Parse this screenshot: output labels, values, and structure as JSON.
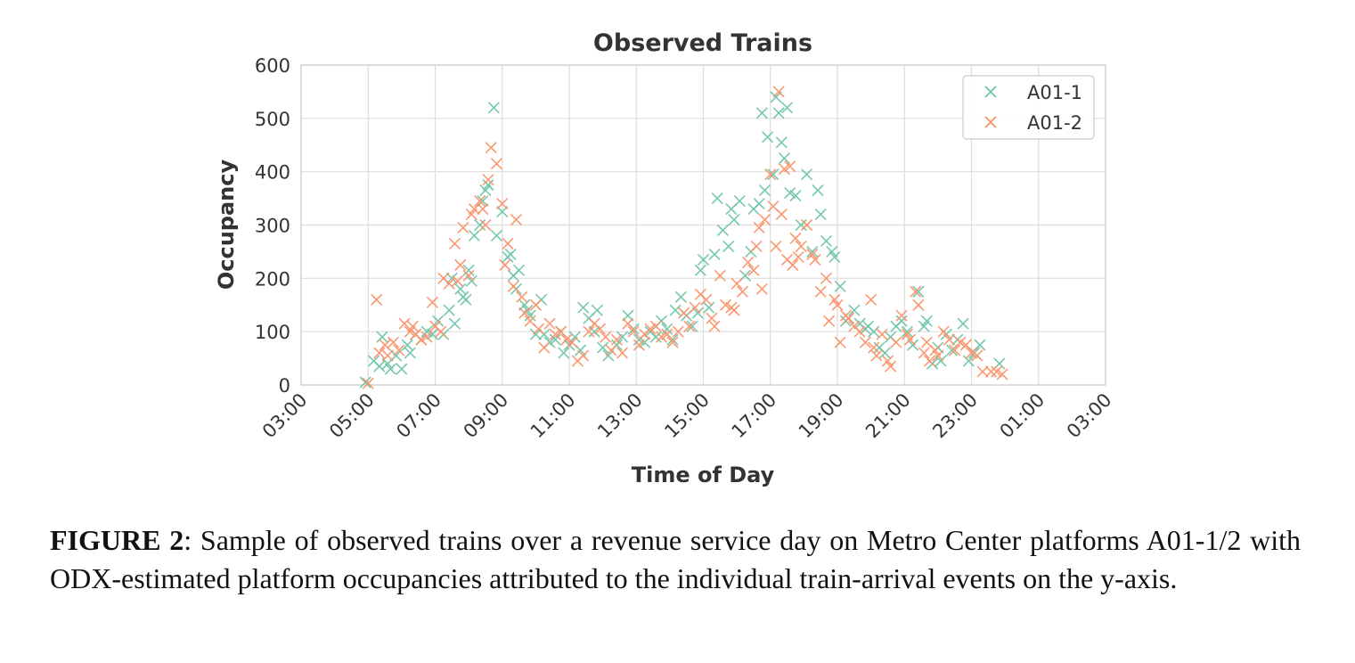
{
  "figure": {
    "label": "FIGURE 2",
    "text": ":  Sample of observed trains over a revenue service day on Metro Center platforms A01-1/2 with ODX-estimated platform occupancies attributed to the individual train-arrival events on the y-axis."
  },
  "chart_data": {
    "type": "scatter",
    "title": "Observed Trains",
    "xlabel": "Time of Day",
    "ylabel": "Occupancy",
    "xlim": [
      "03:00",
      "03:00 (next day)"
    ],
    "ylim": [
      0,
      600
    ],
    "x_ticks": [
      "03:00",
      "05:00",
      "07:00",
      "09:00",
      "11:00",
      "13:00",
      "15:00",
      "17:00",
      "19:00",
      "21:00",
      "23:00",
      "01:00",
      "03:00"
    ],
    "y_ticks": [
      "0",
      "100",
      "200",
      "300",
      "400",
      "500",
      "600"
    ],
    "grid": true,
    "legend_position": "top-right",
    "marker": "x",
    "series": [
      {
        "name": "A01-1",
        "color": "#66c2a5",
        "points": [
          [
            "04:55",
            5
          ],
          [
            "05:10",
            45
          ],
          [
            "05:20",
            35
          ],
          [
            "05:25",
            90
          ],
          [
            "05:35",
            40
          ],
          [
            "05:40",
            30
          ],
          [
            "05:50",
            55
          ],
          [
            "06:00",
            30
          ],
          [
            "06:10",
            75
          ],
          [
            "06:15",
            60
          ],
          [
            "06:25",
            95
          ],
          [
            "06:35",
            85
          ],
          [
            "06:45",
            100
          ],
          [
            "06:55",
            95
          ],
          [
            "07:05",
            120
          ],
          [
            "07:15",
            95
          ],
          [
            "07:25",
            140
          ],
          [
            "07:30",
            200
          ],
          [
            "07:35",
            115
          ],
          [
            "07:45",
            180
          ],
          [
            "07:50",
            165
          ],
          [
            "07:55",
            160
          ],
          [
            "08:00",
            215
          ],
          [
            "08:05",
            195
          ],
          [
            "08:10",
            280
          ],
          [
            "08:20",
            300
          ],
          [
            "08:25",
            345
          ],
          [
            "08:30",
            365
          ],
          [
            "08:35",
            375
          ],
          [
            "08:45",
            520
          ],
          [
            "08:50",
            280
          ],
          [
            "09:00",
            325
          ],
          [
            "09:10",
            240
          ],
          [
            "09:15",
            245
          ],
          [
            "09:20",
            205
          ],
          [
            "09:25",
            180
          ],
          [
            "09:30",
            215
          ],
          [
            "09:40",
            150
          ],
          [
            "09:45",
            140
          ],
          [
            "09:50",
            130
          ],
          [
            "10:00",
            95
          ],
          [
            "10:10",
            160
          ],
          [
            "10:15",
            95
          ],
          [
            "10:25",
            80
          ],
          [
            "10:35",
            85
          ],
          [
            "10:45",
            100
          ],
          [
            "10:50",
            60
          ],
          [
            "11:00",
            75
          ],
          [
            "11:10",
            90
          ],
          [
            "11:20",
            65
          ],
          [
            "11:25",
            145
          ],
          [
            "11:35",
            125
          ],
          [
            "11:45",
            100
          ],
          [
            "11:50",
            140
          ],
          [
            "12:00",
            70
          ],
          [
            "12:10",
            55
          ],
          [
            "12:25",
            75
          ],
          [
            "12:35",
            90
          ],
          [
            "12:45",
            130
          ],
          [
            "12:55",
            105
          ],
          [
            "13:05",
            85
          ],
          [
            "13:15",
            80
          ],
          [
            "13:25",
            100
          ],
          [
            "13:35",
            90
          ],
          [
            "13:45",
            120
          ],
          [
            "13:55",
            105
          ],
          [
            "14:05",
            85
          ],
          [
            "14:10",
            140
          ],
          [
            "14:20",
            165
          ],
          [
            "14:30",
            130
          ],
          [
            "14:40",
            110
          ],
          [
            "14:50",
            135
          ],
          [
            "14:55",
            215
          ],
          [
            "15:00",
            235
          ],
          [
            "15:10",
            145
          ],
          [
            "15:20",
            245
          ],
          [
            "15:25",
            350
          ],
          [
            "15:35",
            290
          ],
          [
            "15:45",
            260
          ],
          [
            "15:50",
            330
          ],
          [
            "15:55",
            310
          ],
          [
            "16:05",
            345
          ],
          [
            "16:15",
            205
          ],
          [
            "16:25",
            250
          ],
          [
            "16:30",
            330
          ],
          [
            "16:40",
            340
          ],
          [
            "16:45",
            510
          ],
          [
            "16:50",
            365
          ],
          [
            "16:55",
            465
          ],
          [
            "17:05",
            395
          ],
          [
            "17:10",
            540
          ],
          [
            "17:15",
            510
          ],
          [
            "17:20",
            455
          ],
          [
            "17:25",
            425
          ],
          [
            "17:30",
            520
          ],
          [
            "17:35",
            360
          ],
          [
            "17:45",
            355
          ],
          [
            "17:55",
            300
          ],
          [
            "18:05",
            395
          ],
          [
            "18:15",
            250
          ],
          [
            "18:25",
            365
          ],
          [
            "18:30",
            320
          ],
          [
            "18:40",
            270
          ],
          [
            "18:50",
            250
          ],
          [
            "18:55",
            240
          ],
          [
            "19:05",
            185
          ],
          [
            "19:15",
            120
          ],
          [
            "19:20",
            125
          ],
          [
            "19:30",
            140
          ],
          [
            "19:40",
            115
          ],
          [
            "19:50",
            105
          ],
          [
            "19:55",
            110
          ],
          [
            "20:05",
            100
          ],
          [
            "20:15",
            70
          ],
          [
            "20:25",
            60
          ],
          [
            "20:35",
            90
          ],
          [
            "20:45",
            110
          ],
          [
            "20:55",
            120
          ],
          [
            "21:05",
            100
          ],
          [
            "21:15",
            75
          ],
          [
            "21:25",
            175
          ],
          [
            "21:35",
            110
          ],
          [
            "21:40",
            120
          ],
          [
            "21:50",
            40
          ],
          [
            "22:00",
            70
          ],
          [
            "22:05",
            45
          ],
          [
            "22:15",
            95
          ],
          [
            "22:25",
            65
          ],
          [
            "22:35",
            85
          ],
          [
            "22:45",
            115
          ],
          [
            "22:55",
            45
          ],
          [
            "23:05",
            60
          ],
          [
            "23:15",
            75
          ],
          [
            "23:50",
            40
          ]
        ]
      },
      {
        "name": "A01-2",
        "color": "#fc8d62",
        "points": [
          [
            "05:00",
            3
          ],
          [
            "05:15",
            160
          ],
          [
            "05:20",
            60
          ],
          [
            "05:30",
            75
          ],
          [
            "05:35",
            55
          ],
          [
            "05:45",
            80
          ],
          [
            "05:55",
            65
          ],
          [
            "06:05",
            115
          ],
          [
            "06:15",
            100
          ],
          [
            "06:20",
            110
          ],
          [
            "06:25",
            95
          ],
          [
            "06:35",
            85
          ],
          [
            "06:45",
            90
          ],
          [
            "06:55",
            155
          ],
          [
            "07:00",
            110
          ],
          [
            "07:10",
            100
          ],
          [
            "07:15",
            200
          ],
          [
            "07:25",
            190
          ],
          [
            "07:35",
            265
          ],
          [
            "07:40",
            195
          ],
          [
            "07:45",
            225
          ],
          [
            "07:50",
            295
          ],
          [
            "08:00",
            205
          ],
          [
            "08:05",
            320
          ],
          [
            "08:10",
            330
          ],
          [
            "08:20",
            345
          ],
          [
            "08:25",
            330
          ],
          [
            "08:30",
            300
          ],
          [
            "08:35",
            385
          ],
          [
            "08:40",
            445
          ],
          [
            "08:50",
            415
          ],
          [
            "09:00",
            340
          ],
          [
            "09:05",
            225
          ],
          [
            "09:10",
            265
          ],
          [
            "09:20",
            185
          ],
          [
            "09:25",
            310
          ],
          [
            "09:35",
            165
          ],
          [
            "09:40",
            135
          ],
          [
            "09:50",
            120
          ],
          [
            "10:00",
            150
          ],
          [
            "10:05",
            105
          ],
          [
            "10:15",
            70
          ],
          [
            "10:25",
            115
          ],
          [
            "10:35",
            95
          ],
          [
            "10:45",
            100
          ],
          [
            "10:55",
            85
          ],
          [
            "11:05",
            80
          ],
          [
            "11:15",
            45
          ],
          [
            "11:25",
            55
          ],
          [
            "11:35",
            100
          ],
          [
            "11:45",
            115
          ],
          [
            "11:55",
            105
          ],
          [
            "12:05",
            90
          ],
          [
            "12:15",
            65
          ],
          [
            "12:25",
            85
          ],
          [
            "12:35",
            60
          ],
          [
            "12:45",
            115
          ],
          [
            "12:55",
            100
          ],
          [
            "13:05",
            75
          ],
          [
            "13:15",
            95
          ],
          [
            "13:25",
            105
          ],
          [
            "13:35",
            110
          ],
          [
            "13:45",
            90
          ],
          [
            "13:55",
            95
          ],
          [
            "14:05",
            80
          ],
          [
            "14:15",
            100
          ],
          [
            "14:25",
            135
          ],
          [
            "14:35",
            110
          ],
          [
            "14:45",
            145
          ],
          [
            "14:55",
            170
          ],
          [
            "15:05",
            160
          ],
          [
            "15:15",
            125
          ],
          [
            "15:20",
            110
          ],
          [
            "15:30",
            205
          ],
          [
            "15:40",
            150
          ],
          [
            "15:50",
            145
          ],
          [
            "15:55",
            140
          ],
          [
            "16:00",
            190
          ],
          [
            "16:10",
            175
          ],
          [
            "16:20",
            230
          ],
          [
            "16:30",
            215
          ],
          [
            "16:35",
            260
          ],
          [
            "16:40",
            295
          ],
          [
            "16:45",
            180
          ],
          [
            "16:50",
            310
          ],
          [
            "17:00",
            395
          ],
          [
            "17:05",
            335
          ],
          [
            "17:10",
            260
          ],
          [
            "17:15",
            550
          ],
          [
            "17:20",
            320
          ],
          [
            "17:25",
            405
          ],
          [
            "17:30",
            235
          ],
          [
            "17:35",
            410
          ],
          [
            "17:40",
            225
          ],
          [
            "17:45",
            275
          ],
          [
            "17:50",
            240
          ],
          [
            "17:55",
            260
          ],
          [
            "18:05",
            300
          ],
          [
            "18:15",
            245
          ],
          [
            "18:20",
            235
          ],
          [
            "18:30",
            175
          ],
          [
            "18:40",
            200
          ],
          [
            "18:45",
            120
          ],
          [
            "18:55",
            160
          ],
          [
            "19:00",
            150
          ],
          [
            "19:05",
            80
          ],
          [
            "19:15",
            130
          ],
          [
            "19:20",
            125
          ],
          [
            "19:30",
            110
          ],
          [
            "19:40",
            100
          ],
          [
            "19:50",
            80
          ],
          [
            "20:00",
            160
          ],
          [
            "20:05",
            70
          ],
          [
            "20:10",
            55
          ],
          [
            "20:20",
            95
          ],
          [
            "20:30",
            45
          ],
          [
            "20:35",
            35
          ],
          [
            "20:45",
            80
          ],
          [
            "20:55",
            130
          ],
          [
            "21:05",
            95
          ],
          [
            "21:10",
            85
          ],
          [
            "21:20",
            175
          ],
          [
            "21:25",
            150
          ],
          [
            "21:35",
            60
          ],
          [
            "21:40",
            80
          ],
          [
            "21:45",
            45
          ],
          [
            "21:55",
            65
          ],
          [
            "22:00",
            55
          ],
          [
            "22:10",
            100
          ],
          [
            "22:20",
            85
          ],
          [
            "22:30",
            65
          ],
          [
            "22:40",
            80
          ],
          [
            "22:50",
            75
          ],
          [
            "23:00",
            60
          ],
          [
            "23:10",
            55
          ],
          [
            "23:20",
            25
          ],
          [
            "23:35",
            25
          ],
          [
            "23:45",
            25
          ],
          [
            "23:55",
            20
          ]
        ]
      }
    ]
  }
}
